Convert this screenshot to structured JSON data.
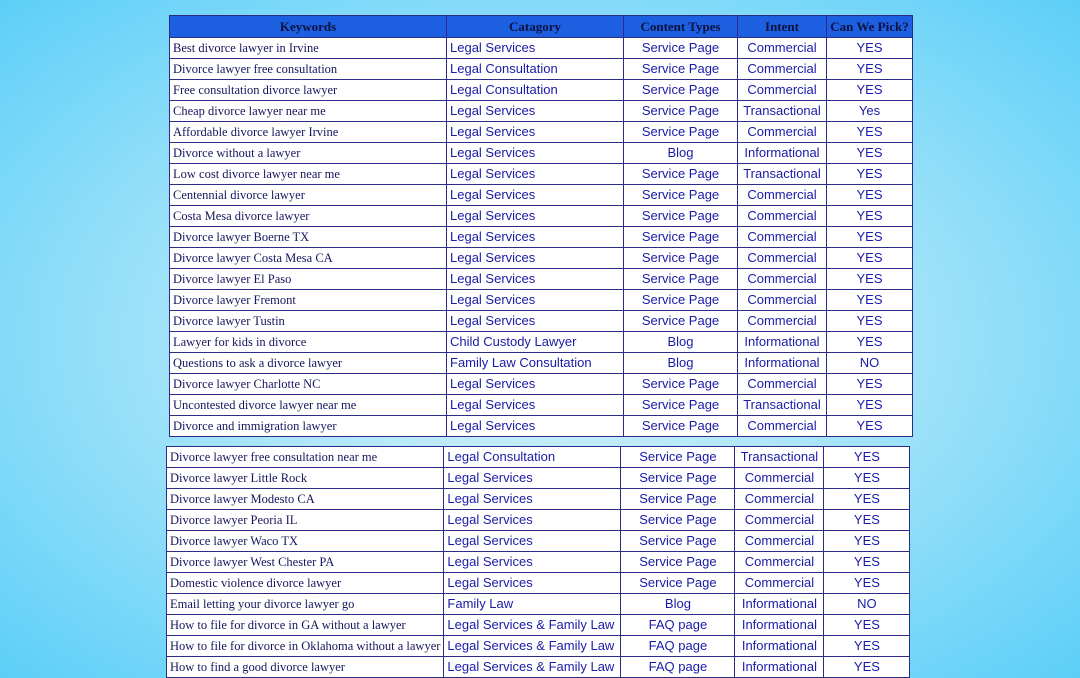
{
  "table": {
    "header": [
      "Keywords",
      "Catagory",
      "Content Types",
      "Intent",
      "Can We Pick?"
    ],
    "rows": [
      [
        "Best divorce lawyer in Irvine",
        "Legal Services",
        "Service Page",
        "Commercial",
        "YES"
      ],
      [
        "Divorce lawyer free consultation",
        "Legal Consultation",
        "Service Page",
        "Commercial",
        "YES"
      ],
      [
        "Free consultation divorce lawyer",
        "Legal Consultation",
        "Service Page",
        "Commercial",
        "YES"
      ],
      [
        "Cheap divorce lawyer near me",
        "Legal Services",
        "Service Page",
        "Transactional",
        "Yes"
      ],
      [
        "Affordable divorce lawyer Irvine",
        "Legal Services",
        "Service Page",
        "Commercial",
        "YES"
      ],
      [
        "Divorce without a lawyer",
        "Legal Services",
        "Blog",
        "Informational",
        "YES"
      ],
      [
        "Low cost divorce lawyer near me",
        "Legal Services",
        "Service Page",
        "Transactional",
        "YES"
      ],
      [
        "Centennial divorce lawyer",
        "Legal Services",
        "Service Page",
        "Commercial",
        "YES"
      ],
      [
        "Costa Mesa divorce lawyer",
        "Legal Services",
        "Service Page",
        "Commercial",
        "YES"
      ],
      [
        "Divorce lawyer Boerne TX",
        "Legal Services",
        "Service Page",
        "Commercial",
        "YES"
      ],
      [
        "Divorce lawyer Costa Mesa CA",
        "Legal Services",
        "Service Page",
        "Commercial",
        "YES"
      ],
      [
        "Divorce lawyer El Paso",
        "Legal Services",
        "Service Page",
        "Commercial",
        "YES"
      ],
      [
        "Divorce lawyer Fremont",
        "Legal Services",
        "Service Page",
        "Commercial",
        "YES"
      ],
      [
        "Divorce lawyer Tustin",
        "Legal Services",
        "Service Page",
        "Commercial",
        "YES"
      ],
      [
        "Lawyer for kids in divorce",
        "Child Custody Lawyer",
        "Blog",
        "Informational",
        "YES"
      ],
      [
        "Questions to ask a divorce lawyer",
        "Family Law Consultation",
        "Blog",
        "Informational",
        "NO"
      ],
      [
        "Divorce lawyer Charlotte NC",
        "Legal Services",
        "Service Page",
        "Commercial",
        "YES"
      ],
      [
        "Uncontested divorce lawyer near me",
        "Legal Services",
        "Service Page",
        "Transactional",
        "YES"
      ],
      [
        "Divorce and immigration lawyer",
        "Legal Services",
        "Service Page",
        "Commercial",
        "YES"
      ]
    ]
  },
  "table2": {
    "rows": [
      [
        "Divorce lawyer free consultation near me",
        "Legal Consultation",
        "Service Page",
        "Transactional",
        "YES"
      ],
      [
        "Divorce lawyer Little Rock",
        "Legal Services",
        "Service Page",
        "Commercial",
        "YES"
      ],
      [
        "Divorce lawyer Modesto CA",
        "Legal Services",
        "Service Page",
        "Commercial",
        "YES"
      ],
      [
        "Divorce lawyer Peoria IL",
        "Legal Services",
        "Service Page",
        "Commercial",
        "YES"
      ],
      [
        "Divorce lawyer Waco TX",
        "Legal Services",
        "Service Page",
        "Commercial",
        "YES"
      ],
      [
        "Divorce lawyer West Chester PA",
        "Legal Services",
        "Service Page",
        "Commercial",
        "YES"
      ],
      [
        "Domestic violence divorce lawyer",
        "Legal Services",
        "Service Page",
        "Commercial",
        "YES"
      ],
      [
        "Email letting your divorce lawyer go",
        "Family Law",
        "Blog",
        "Informational",
        "NO"
      ],
      [
        "How to file for divorce in GA without a lawyer",
        "Legal Services & Family Law",
        "FAQ page",
        "Informational",
        "YES"
      ],
      [
        "How to file for divorce in Oklahoma without a lawyer",
        "Legal Services & Family Law",
        "FAQ page",
        "Informational",
        "YES"
      ],
      [
        "How to find a good divorce lawyer",
        "Legal Services & Family Law",
        "FAQ page",
        "Informational",
        "YES"
      ]
    ]
  }
}
